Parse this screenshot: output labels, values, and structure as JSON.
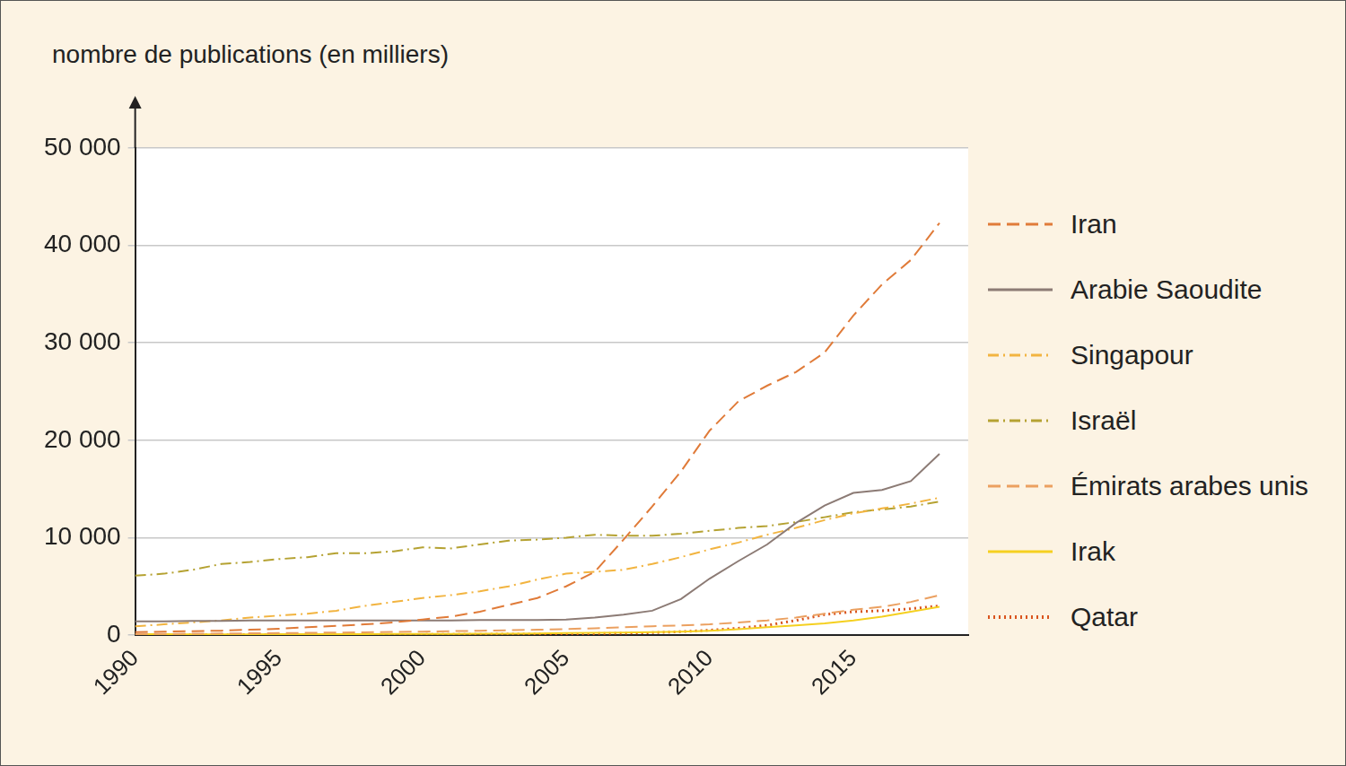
{
  "chart_data": {
    "type": "line",
    "ylabel": "nombre de publications (en milliers)",
    "x": [
      1990,
      1991,
      1992,
      1993,
      1994,
      1995,
      1996,
      1997,
      1998,
      1999,
      2000,
      2001,
      2002,
      2003,
      2004,
      2005,
      2006,
      2007,
      2008,
      2009,
      2010,
      2011,
      2012,
      2013,
      2014,
      2015,
      2016,
      2017,
      2018
    ],
    "xlim": [
      1990,
      2019
    ],
    "xticks": [
      1990,
      1995,
      2000,
      2005,
      2010,
      2015
    ],
    "ylim": [
      0,
      50000
    ],
    "yticks": [
      0,
      {
        "value": 10000,
        "label": "10 000"
      },
      {
        "value": 20000,
        "label": "20 000"
      },
      {
        "value": 30000,
        "label": "30 000"
      },
      {
        "value": 40000,
        "label": "40 000"
      },
      {
        "value": 50000,
        "label": "50 000"
      }
    ],
    "grid": true,
    "legend": "right",
    "series": [
      {
        "name": "Iran",
        "color": "#e07b39",
        "line_style": "dashed",
        "values": [
          300,
          350,
          400,
          450,
          550,
          650,
          800,
          950,
          1100,
          1300,
          1600,
          1900,
          2400,
          3100,
          3800,
          5000,
          6500,
          9800,
          13200,
          16800,
          21000,
          24000,
          25600,
          27000,
          29000,
          32800,
          36000,
          38500,
          42300
        ]
      },
      {
        "name": "Arabie Saoudite",
        "color": "#8c7b75",
        "line_style": "solid",
        "values": [
          1400,
          1400,
          1450,
          1450,
          1500,
          1500,
          1500,
          1500,
          1500,
          1500,
          1500,
          1500,
          1550,
          1550,
          1550,
          1600,
          1800,
          2100,
          2500,
          3700,
          5800,
          7600,
          9300,
          11500,
          13300,
          14600,
          14900,
          15800,
          18600
        ]
      },
      {
        "name": "Singapour",
        "color": "#f2b440",
        "line_style": "dashdot",
        "values": [
          900,
          1100,
          1300,
          1500,
          1800,
          2000,
          2200,
          2500,
          3000,
          3400,
          3800,
          4100,
          4500,
          5000,
          5700,
          6300,
          6500,
          6700,
          7300,
          8000,
          8800,
          9500,
          10300,
          11000,
          11800,
          12500,
          13000,
          13500,
          14100
        ]
      },
      {
        "name": "Israël",
        "color": "#b5a232",
        "line_style": "dashdot",
        "values": [
          6100,
          6300,
          6700,
          7300,
          7500,
          7800,
          8000,
          8400,
          8400,
          8600,
          9000,
          8900,
          9300,
          9700,
          9800,
          10000,
          10300,
          10200,
          10200,
          10400,
          10700,
          11000,
          11200,
          11600,
          12100,
          12600,
          12900,
          13200,
          13700
        ]
      },
      {
        "name": "Émirats arabes unis",
        "color": "#eba060",
        "line_style": "dashed",
        "values": [
          100,
          120,
          140,
          160,
          180,
          200,
          230,
          260,
          290,
          320,
          350,
          400,
          450,
          500,
          550,
          620,
          700,
          800,
          900,
          1000,
          1100,
          1300,
          1500,
          1800,
          2200,
          2600,
          2900,
          3400,
          4100
        ]
      },
      {
        "name": "Irak",
        "color": "#f5d020",
        "line_style": "solid",
        "values": [
          100,
          90,
          80,
          80,
          80,
          90,
          90,
          100,
          100,
          110,
          120,
          130,
          140,
          150,
          170,
          200,
          230,
          260,
          300,
          350,
          450,
          600,
          800,
          1000,
          1200,
          1500,
          1900,
          2400,
          2900
        ]
      },
      {
        "name": "Qatar",
        "color": "#d9541e",
        "line_style": "dotted",
        "values": [
          30,
          30,
          35,
          35,
          40,
          40,
          45,
          50,
          50,
          55,
          60,
          70,
          80,
          90,
          100,
          120,
          150,
          190,
          250,
          350,
          500,
          700,
          1000,
          1500,
          2100,
          2400,
          2500,
          2700,
          3000
        ]
      }
    ]
  }
}
